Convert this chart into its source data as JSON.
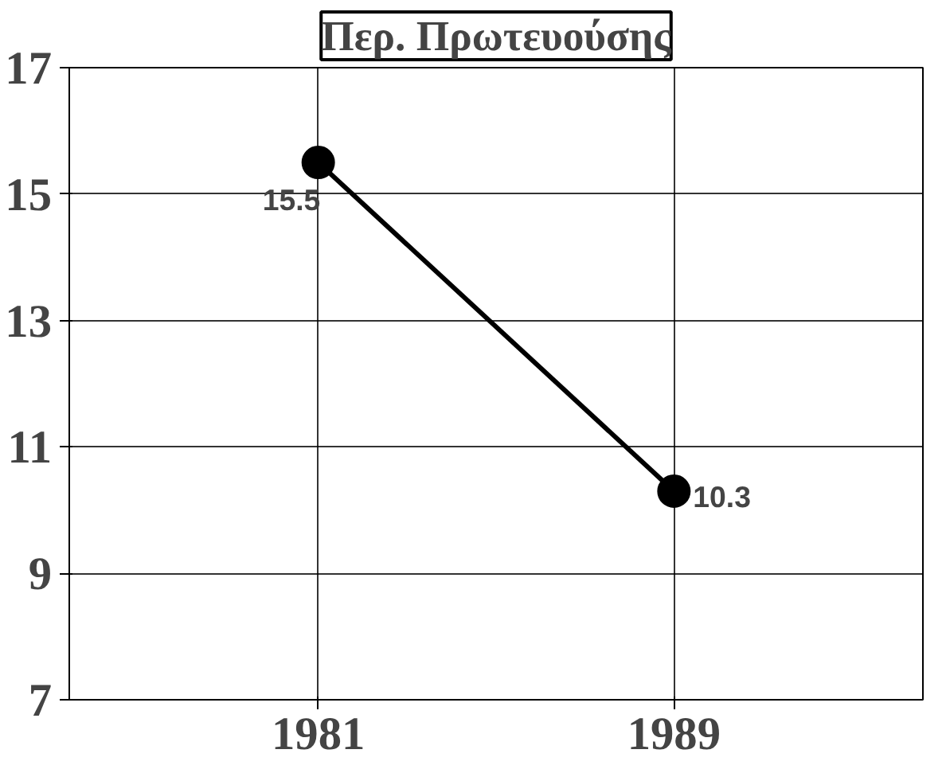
{
  "chart_data": {
    "type": "line",
    "title": "Περ. Πρωτευούσης",
    "categories": [
      "1981",
      "1989"
    ],
    "series": [
      {
        "color": "#000000",
        "values": [
          15.5,
          10.3
        ]
      }
    ],
    "ylim": [
      7,
      17
    ],
    "yticks": [
      7,
      9,
      11,
      13,
      15,
      17
    ],
    "grid": true,
    "marker": "circle",
    "line_style": "solid",
    "data_labels": true
  }
}
